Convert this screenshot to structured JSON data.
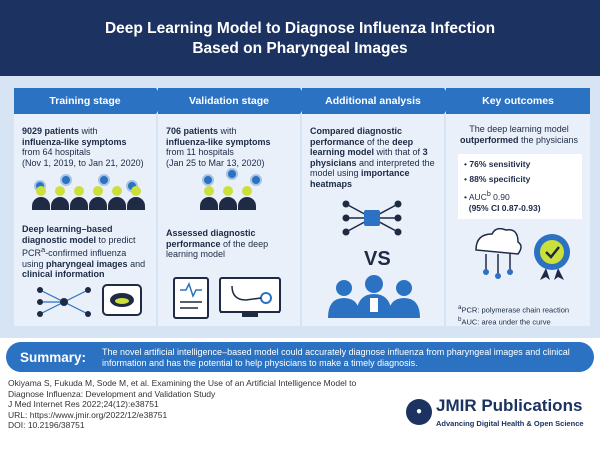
{
  "header": {
    "title_line1": "Deep Learning Model to Diagnose Influenza Infection",
    "title_line2": "Based on Pharyngeal Images"
  },
  "training": {
    "tab": "Training stage",
    "p1_bold": "9029 patients",
    "p1_text": "with",
    "p1_bold2": "influenza-like symptoms",
    "p1_line3": "from 64 hospitals",
    "p1_line4": "(Nov 1, 2019, to Jan 21, 2020)",
    "p2_bold": "Deep learning–based diagnostic model",
    "p2_text": "to predict PCR",
    "p2_sup": "a",
    "p2_text2": "-confirmed influenza using",
    "p2_bold2": "pharyngeal images",
    "p2_text3": "and",
    "p2_bold3": "clinical information"
  },
  "validation": {
    "tab": "Validation stage",
    "p1_bold": "706 patients",
    "p1_text": "with",
    "p1_bold2": "influenza-like symptoms",
    "p1_line3": "from 11 hospitals",
    "p1_line4": "(Jan 25 to Mar 13, 2020)",
    "p2_bold": "Assessed diagnostic performance",
    "p2_text": "of the deep learning model"
  },
  "analysis": {
    "tab": "Additional analysis",
    "t1_bold": "Compared diagnostic performance",
    "t1_text": "of the",
    "t1_bold2": "deep learning model",
    "t1_text2": "with that of",
    "t1_bold3": "3 physicians",
    "t1_text3": "and interpreted the model using",
    "t1_bold4": "importance heatmaps",
    "vs": "VS"
  },
  "outcomes": {
    "tab": "Key outcomes",
    "t1_text": "The deep learning model",
    "t1_bold": "outperformed",
    "t1_text2": "the physicians",
    "b1": "76% sensitivity",
    "b2": "88% specificity",
    "b3_text": "AUC",
    "b3_sup": "b",
    "b3_val": "0.90",
    "b3_ci": "(95% CI 0.87-0.93)",
    "bullet": "•",
    "fn_a_sup": "a",
    "fn_a": "PCR: polymerase chain reaction",
    "fn_b_sup": "b",
    "fn_b": "AUC: area under the curve"
  },
  "summary": {
    "label": "Summary:",
    "text": "The novel artificial intelligence–based model could accurately diagnose influenza from pharyngeal images and clinical information and has the potential to help physicians to make a timely diagnosis."
  },
  "citation": {
    "line1": "Okiyama S, Fukuda M, Sode M, et al. Examining the Use of an Artificial Intelligence Model to",
    "line2": "Diagnose Influenza: Development and Validation Study",
    "line3": "J Med Internet Res 2022;24(12):e38751",
    "line4": "URL: https://www.jmir.org/2022/12/e38751",
    "line5": "DOI: 10.2196/38751"
  },
  "logo": {
    "name": "JMIR Publications",
    "tagline": "Advancing Digital Health & Open Science"
  },
  "colors": {
    "header_bg": "#1c3361",
    "accent": "#2b72c2",
    "panel_bg": "#d7e4f3",
    "face_yellow": "#cce03b"
  }
}
